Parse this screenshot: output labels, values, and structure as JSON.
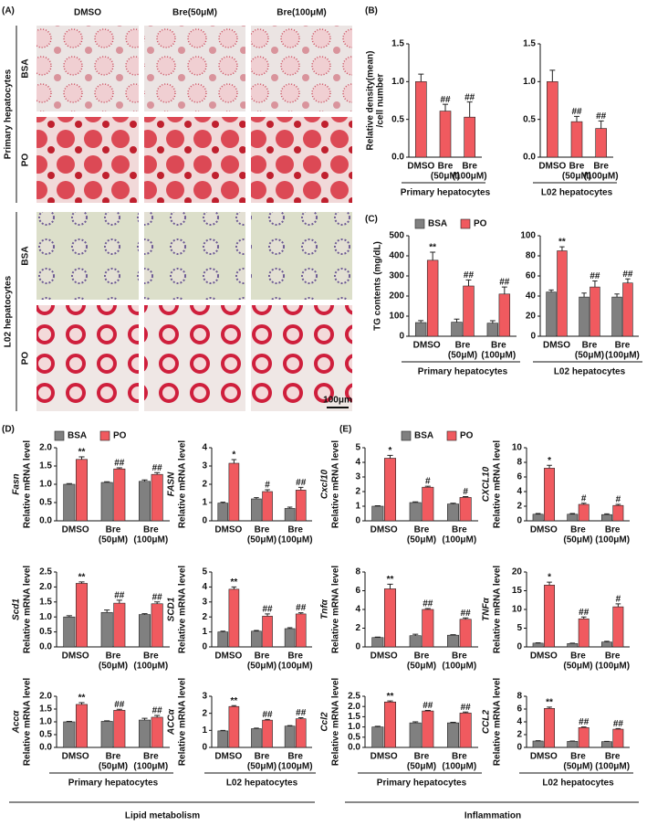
{
  "panels": {
    "a": {
      "label": "(A)",
      "columns": [
        "DMSO",
        "Bre(50μM)",
        "Bre(100μM)"
      ],
      "groups": [
        {
          "name": "Primary hepatocytes",
          "rows": [
            "BSA",
            "PO"
          ]
        },
        {
          "name": "L02 hepatocytes",
          "rows": [
            "BSA",
            "PO"
          ]
        }
      ],
      "scale_bar": "100μm"
    },
    "b": {
      "label": "(B)"
    },
    "c": {
      "label": "(C)"
    },
    "d": {
      "label": "(D)",
      "section": "Lipid metabolism"
    },
    "e": {
      "label": "(E)",
      "section": "Inflammation"
    }
  },
  "chart_data": [
    {
      "type": "bar",
      "ylabel": [
        "Relative density(mean)",
        "/cell number"
      ],
      "categories": [
        "DMSO",
        "Bre",
        "Bre"
      ],
      "category_doses": [
        "(50μM)",
        "(100μM)"
      ],
      "xlabel": "Primary hepatocytes",
      "ylim": [
        0,
        1.5
      ],
      "yticks": [
        {
          "value": 0,
          "label": "0.0"
        },
        0.5,
        {
          "value": 1,
          "label": "1.0"
        },
        1.5
      ],
      "series": [
        {
          "color": "#f05a5f",
          "values": [
            1.0,
            0.61,
            0.53
          ],
          "errors": [
            0.1,
            0.09,
            0.2
          ],
          "annotations": [
            null,
            "##",
            "##"
          ]
        }
      ]
    },
    {
      "type": "bar",
      "categories": [
        "DMSO",
        "Bre",
        "Bre"
      ],
      "category_doses": [
        "(50μM)",
        "(100μM)"
      ],
      "xlabel": "L02 hepatocytes",
      "ylim": [
        0,
        1.5
      ],
      "yticks": [
        {
          "value": 0,
          "label": "0.0"
        },
        0.5,
        {
          "value": 1,
          "label": "1.0"
        },
        1.5
      ],
      "series": [
        {
          "color": "#f05a5f",
          "values": [
            1.0,
            0.47,
            0.38
          ],
          "errors": [
            0.15,
            0.07,
            0.1
          ],
          "annotations": [
            null,
            "##",
            "##"
          ]
        }
      ]
    },
    {
      "type": "bar",
      "ylabel": "TG contents (mg/dL)",
      "categories": [
        "DMSO",
        "Bre",
        "Bre"
      ],
      "category_doses": [
        "(50μM)",
        "(100μM)"
      ],
      "xlabel": "Primary hepatocytes",
      "legend": true,
      "ylim": [
        0,
        500
      ],
      "yticks": [
        0,
        100,
        200,
        300,
        400,
        500
      ],
      "series": [
        {
          "name": "BSA",
          "color": "#808080",
          "values": [
            68,
            70,
            65
          ],
          "errors": [
            10,
            15,
            12
          ],
          "annotations": [
            null,
            null,
            null
          ]
        },
        {
          "name": "PO",
          "color": "#f05a5f",
          "values": [
            378,
            250,
            210
          ],
          "errors": [
            40,
            30,
            35
          ],
          "annotations": [
            "**",
            "##",
            "##"
          ]
        }
      ]
    },
    {
      "type": "bar",
      "categories": [
        "DMSO",
        "Bre",
        "Bre"
      ],
      "category_doses": [
        "(50μM)",
        "(100μM)"
      ],
      "xlabel": "L02 hepatocytes",
      "ylim": [
        0,
        100
      ],
      "yticks": [
        0,
        20,
        40,
        60,
        80,
        100
      ],
      "series": [
        {
          "color": "#808080",
          "values": [
            44,
            39,
            39
          ],
          "errors": [
            2,
            4,
            3
          ],
          "annotations": [
            null,
            null,
            null
          ]
        },
        {
          "color": "#f05a5f",
          "values": [
            85,
            49,
            53
          ],
          "errors": [
            4,
            6,
            4
          ],
          "annotations": [
            "**",
            "##",
            "##"
          ]
        }
      ]
    },
    {
      "type": "bar",
      "gene": "Fasn",
      "ylabel": "Relative mRNA level",
      "categories": [
        "DMSO",
        "Bre",
        "Bre"
      ],
      "category_doses": [
        "(50μM)",
        "(100μM)"
      ],
      "legend": true,
      "ylim": [
        0,
        2
      ],
      "yticks": [
        {
          "value": 0,
          "label": "0.0"
        },
        0.5,
        {
          "value": 1,
          "label": "1.0"
        },
        1.5,
        {
          "value": 2,
          "label": "2.0"
        }
      ],
      "series": [
        {
          "name": "BSA",
          "color": "#808080",
          "values": [
            1.0,
            1.05,
            1.08
          ],
          "errors": [
            0.02,
            0.02,
            0.04
          ],
          "annotations": [
            null,
            null,
            null
          ]
        },
        {
          "name": "PO",
          "color": "#f05a5f",
          "values": [
            1.68,
            1.42,
            1.27
          ],
          "errors": [
            0.07,
            0.03,
            0.05
          ],
          "annotations": [
            "**",
            "##",
            "##"
          ]
        }
      ]
    },
    {
      "type": "bar",
      "gene": "FASN",
      "ylabel": "Relative mRNA level",
      "categories": [
        "DMSO",
        "Bre",
        "Bre"
      ],
      "category_doses": [
        "(50μM)",
        "(100μM)"
      ],
      "ylim": [
        0,
        4
      ],
      "yticks": [
        0,
        1,
        2,
        3,
        4
      ],
      "series": [
        {
          "color": "#808080",
          "values": [
            0.97,
            1.2,
            0.68
          ],
          "errors": [
            0.05,
            0.07,
            0.07
          ],
          "annotations": [
            null,
            null,
            null
          ]
        },
        {
          "color": "#f05a5f",
          "values": [
            3.15,
            1.6,
            1.68
          ],
          "errors": [
            0.2,
            0.1,
            0.15
          ],
          "annotations": [
            "*",
            "#",
            "##"
          ]
        }
      ]
    },
    {
      "type": "bar",
      "gene": "Scd1",
      "ylabel": "Relative mRNA level",
      "categories": [
        "DMSO",
        "Bre",
        "Bre"
      ],
      "category_doses": [
        "(50μM)",
        "(100μM)"
      ],
      "ylim": [
        0,
        2.5
      ],
      "yticks": [
        {
          "value": 0,
          "label": "0.0"
        },
        0.5,
        {
          "value": 1,
          "label": "1.0"
        },
        1.5,
        {
          "value": 2,
          "label": "2.0"
        },
        2.5
      ],
      "series": [
        {
          "color": "#808080",
          "values": [
            1.0,
            1.15,
            1.08
          ],
          "errors": [
            0.04,
            0.08,
            0.03
          ],
          "annotations": [
            null,
            null,
            null
          ]
        },
        {
          "color": "#f05a5f",
          "values": [
            2.12,
            1.46,
            1.44
          ],
          "errors": [
            0.05,
            0.1,
            0.06
          ],
          "annotations": [
            "**",
            "##",
            "##"
          ]
        }
      ]
    },
    {
      "type": "bar",
      "gene": "SCD1",
      "ylabel": "Relative mRNA level",
      "categories": [
        "DMSO",
        "Bre",
        "Bre"
      ],
      "category_doses": [
        "(50μM)",
        "(100μM)"
      ],
      "ylim": [
        0,
        5
      ],
      "yticks": [
        0,
        1,
        2,
        3,
        4,
        5
      ],
      "series": [
        {
          "color": "#808080",
          "values": [
            1.0,
            1.05,
            1.22
          ],
          "errors": [
            0.05,
            0.05,
            0.06
          ],
          "annotations": [
            null,
            null,
            null
          ]
        },
        {
          "color": "#f05a5f",
          "values": [
            3.85,
            2.05,
            2.2
          ],
          "errors": [
            0.15,
            0.15,
            0.08
          ],
          "annotations": [
            "**",
            "##",
            "##"
          ]
        }
      ]
    },
    {
      "type": "bar",
      "gene": "Accα",
      "ylabel": "Relative mRNA level",
      "categories": [
        "DMSO",
        "Bre",
        "Bre"
      ],
      "category_doses": [
        "(50μM)",
        "(100μM)"
      ],
      "xlabel": "Primary hepatocytes",
      "ylim": [
        0,
        2
      ],
      "yticks": [
        {
          "value": 0,
          "label": "0.0"
        },
        0.5,
        {
          "value": 1,
          "label": "1.0"
        },
        1.5,
        {
          "value": 2,
          "label": "2.0"
        }
      ],
      "series": [
        {
          "color": "#808080",
          "values": [
            1.0,
            1.02,
            1.07
          ],
          "errors": [
            0.02,
            0.02,
            0.07
          ],
          "annotations": [
            null,
            null,
            null
          ]
        },
        {
          "color": "#f05a5f",
          "values": [
            1.68,
            1.45,
            1.18
          ],
          "errors": [
            0.07,
            0.04,
            0.07
          ],
          "annotations": [
            "**",
            "##",
            "##"
          ]
        }
      ]
    },
    {
      "type": "bar",
      "gene": "ACCα",
      "ylabel": "Relative mRNA level",
      "categories": [
        "DMSO",
        "Bre",
        "Bre"
      ],
      "category_doses": [
        "(50μM)",
        "(100μM)"
      ],
      "xlabel": "L02 hepatocytes",
      "ylim": [
        0,
        3
      ],
      "yticks": [
        0,
        1,
        2,
        3
      ],
      "series": [
        {
          "color": "#808080",
          "values": [
            0.97,
            1.1,
            1.25
          ],
          "errors": [
            0.03,
            0.03,
            0.03
          ],
          "annotations": [
            null,
            null,
            null
          ]
        },
        {
          "color": "#f05a5f",
          "values": [
            2.4,
            1.6,
            1.68
          ],
          "errors": [
            0.05,
            0.04,
            0.06
          ],
          "annotations": [
            "**",
            "##",
            "##"
          ]
        }
      ]
    },
    {
      "type": "bar",
      "gene": "Cxcl10",
      "ylabel": "Relative mRNA level",
      "categories": [
        "DMSO",
        "Bre",
        "Bre"
      ],
      "category_doses": [
        "(50μM)",
        "(100μM)"
      ],
      "legend": true,
      "ylim": [
        0,
        5
      ],
      "yticks": [
        0,
        1,
        2,
        3,
        4,
        5
      ],
      "series": [
        {
          "name": "BSA",
          "color": "#808080",
          "values": [
            1.0,
            1.25,
            1.15
          ],
          "errors": [
            0.03,
            0.05,
            0.05
          ],
          "annotations": [
            null,
            null,
            null
          ]
        },
        {
          "name": "PO",
          "color": "#f05a5f",
          "values": [
            4.28,
            2.3,
            1.6
          ],
          "errors": [
            0.2,
            0.07,
            0.06
          ],
          "annotations": [
            "*",
            "#",
            "#"
          ]
        }
      ]
    },
    {
      "type": "bar",
      "gene": "CXCL10",
      "ylabel": "Relative mRNA level",
      "categories": [
        "DMSO",
        "Bre",
        "Bre"
      ],
      "category_doses": [
        "(50μM)",
        "(100μM)"
      ],
      "ylim": [
        0,
        10
      ],
      "yticks": [
        0,
        2,
        4,
        6,
        8,
        10
      ],
      "series": [
        {
          "color": "#808080",
          "values": [
            0.9,
            0.9,
            0.85
          ],
          "errors": [
            0.1,
            0.1,
            0.1
          ],
          "annotations": [
            null,
            null,
            null
          ]
        },
        {
          "color": "#f05a5f",
          "values": [
            7.2,
            2.25,
            2.1
          ],
          "errors": [
            0.4,
            0.15,
            0.15
          ],
          "annotations": [
            "*",
            "#",
            "#"
          ]
        }
      ]
    },
    {
      "type": "bar",
      "gene": "Tnfα",
      "ylabel": "Relative mRNA level",
      "categories": [
        "DMSO",
        "Bre",
        "Bre"
      ],
      "category_doses": [
        "(50μM)",
        "(100μM)"
      ],
      "ylim": [
        0,
        8
      ],
      "yticks": [
        0,
        2,
        4,
        6,
        8
      ],
      "series": [
        {
          "color": "#808080",
          "values": [
            1.0,
            1.2,
            1.25
          ],
          "errors": [
            0.05,
            0.15,
            0.05
          ],
          "annotations": [
            null,
            null,
            null
          ]
        },
        {
          "color": "#f05a5f",
          "values": [
            6.2,
            4.0,
            2.95
          ],
          "errors": [
            0.5,
            0.1,
            0.15
          ],
          "annotations": [
            "**",
            "##",
            "##"
          ]
        }
      ]
    },
    {
      "type": "bar",
      "gene": "TNFα",
      "ylabel": "Relative mRNA level",
      "categories": [
        "DMSO",
        "Bre",
        "Bre"
      ],
      "category_doses": [
        "(50μM)",
        "(100μM)"
      ],
      "ylim": [
        0,
        20
      ],
      "yticks": [
        0,
        5,
        10,
        15,
        20
      ],
      "series": [
        {
          "color": "#808080",
          "values": [
            1.0,
            0.9,
            1.3
          ],
          "errors": [
            0.1,
            0.1,
            0.2
          ],
          "annotations": [
            null,
            null,
            null
          ]
        },
        {
          "color": "#f05a5f",
          "values": [
            16.5,
            7.5,
            10.7
          ],
          "errors": [
            0.8,
            0.5,
            0.8
          ],
          "annotations": [
            "*",
            "##",
            "#"
          ]
        }
      ]
    },
    {
      "type": "bar",
      "gene": "Ccl2",
      "ylabel": "Relative mRNA level",
      "categories": [
        "DMSO",
        "Bre",
        "Bre"
      ],
      "category_doses": [
        "(50μM)",
        "(100μM)"
      ],
      "xlabel": "Primary hepatocytes",
      "ylim": [
        0,
        2.5
      ],
      "yticks": [
        {
          "value": 0,
          "label": "0.0"
        },
        0.5,
        {
          "value": 1,
          "label": "1.0"
        },
        1.5,
        {
          "value": 2,
          "label": "2.0"
        },
        2.5
      ],
      "series": [
        {
          "color": "#808080",
          "values": [
            1.0,
            1.2,
            1.2
          ],
          "errors": [
            0.03,
            0.05,
            0.03
          ],
          "annotations": [
            null,
            null,
            null
          ]
        },
        {
          "color": "#f05a5f",
          "values": [
            2.22,
            1.78,
            1.68
          ],
          "errors": [
            0.05,
            0.03,
            0.05
          ],
          "annotations": [
            "**",
            "##",
            "##"
          ]
        }
      ]
    },
    {
      "type": "bar",
      "gene": "CCL2",
      "ylabel": "Relative mRNA level",
      "categories": [
        "DMSO",
        "Bre",
        "Bre"
      ],
      "category_doses": [
        "(50μM)",
        "(100μM)"
      ],
      "xlabel": "L02 hepatocytes",
      "ylim": [
        0,
        8
      ],
      "yticks": [
        0,
        2,
        4,
        6,
        8
      ],
      "series": [
        {
          "color": "#808080",
          "values": [
            1.0,
            0.95,
            0.9
          ],
          "errors": [
            0.05,
            0.05,
            0.05
          ],
          "annotations": [
            null,
            null,
            null
          ]
        },
        {
          "color": "#f05a5f",
          "values": [
            6.1,
            3.1,
            2.85
          ],
          "errors": [
            0.2,
            0.1,
            0.1
          ],
          "annotations": [
            "**",
            "##",
            "##"
          ]
        }
      ]
    }
  ]
}
